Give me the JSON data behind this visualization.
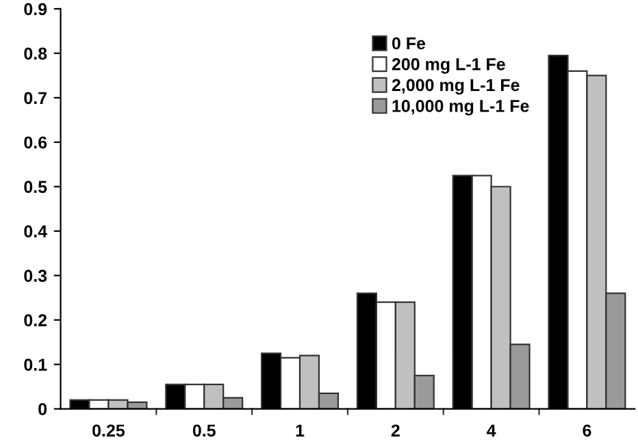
{
  "chart_data": {
    "type": "bar",
    "categories": [
      "0.25",
      "0.5",
      "1",
      "2",
      "4",
      "6"
    ],
    "series": [
      {
        "name": "0 Fe",
        "color": "#000000",
        "values": [
          0.02,
          0.055,
          0.125,
          0.26,
          0.525,
          0.795
        ]
      },
      {
        "name": "200 mg L-1 Fe",
        "color": "#ffffff",
        "values": [
          0.02,
          0.055,
          0.115,
          0.24,
          0.525,
          0.76
        ]
      },
      {
        "name": "2,000 mg L-1 Fe",
        "color": "#c0c0c0",
        "values": [
          0.02,
          0.055,
          0.12,
          0.24,
          0.5,
          0.75
        ]
      },
      {
        "name": "10,000 mg L-1 Fe",
        "color": "#9a9a9a",
        "values": [
          0.015,
          0.025,
          0.035,
          0.075,
          0.145,
          0.26
        ]
      }
    ],
    "ylim": [
      0,
      0.9
    ],
    "yticks": [
      0,
      0.1,
      0.2,
      0.3,
      0.4,
      0.5,
      0.6,
      0.7,
      0.8,
      0.9
    ],
    "grid": false,
    "legend": "top"
  }
}
